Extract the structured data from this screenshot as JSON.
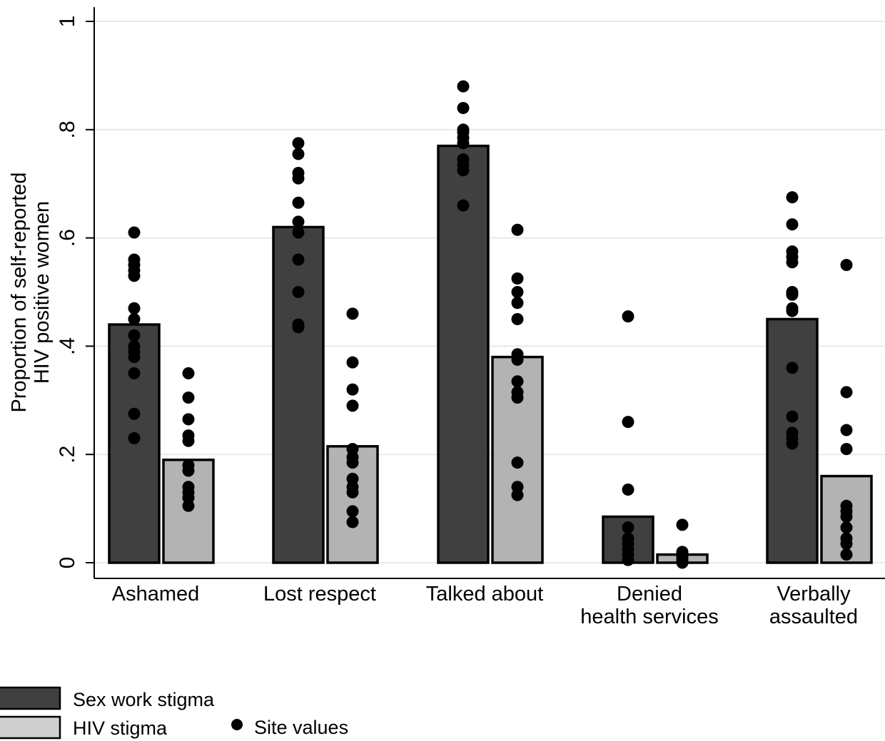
{
  "chart_data": {
    "type": "bar",
    "categories": [
      [
        "Ashamed"
      ],
      [
        "Lost respect"
      ],
      [
        "Talked about"
      ],
      [
        "Denied",
        "health services"
      ],
      [
        "Verbally",
        "assaulted"
      ]
    ],
    "ylabel": [
      "Proportion of self-reported",
      "HIV positive women"
    ],
    "xlabel": "",
    "ylim": [
      0,
      1
    ],
    "yticks": [
      {
        "value": 0,
        "label": "0"
      },
      {
        "value": 0.2,
        "label": ".2"
      },
      {
        "value": 0.4,
        "label": ".4"
      },
      {
        "value": 0.6,
        "label": ".6"
      },
      {
        "value": 0.8,
        "label": ".8"
      },
      {
        "value": 1,
        "label": "1"
      }
    ],
    "grid": true,
    "legend_position": "bottom-left",
    "series": [
      {
        "name": "Sex work stigma",
        "color": "#404040",
        "values": [
          0.44,
          0.62,
          0.77,
          0.085,
          0.45
        ],
        "site_values": [
          [
            0.61,
            0.56,
            0.55,
            0.54,
            0.53,
            0.47,
            0.45,
            0.42,
            0.4,
            0.39,
            0.38,
            0.35,
            0.275,
            0.23
          ],
          [
            0.775,
            0.755,
            0.72,
            0.71,
            0.665,
            0.63,
            0.61,
            0.56,
            0.5,
            0.44,
            0.435
          ],
          [
            0.88,
            0.84,
            0.8,
            0.795,
            0.785,
            0.775,
            0.745,
            0.735,
            0.725,
            0.66
          ],
          [
            0.455,
            0.26,
            0.135,
            0.065,
            0.045,
            0.035,
            0.025,
            0.015,
            0.005
          ],
          [
            0.675,
            0.625,
            0.575,
            0.565,
            0.555,
            0.5,
            0.495,
            0.47,
            0.465,
            0.36,
            0.27,
            0.24,
            0.23,
            0.22
          ]
        ]
      },
      {
        "name": "HIV stigma",
        "color": "#b3b3b3",
        "values": [
          0.19,
          0.215,
          0.38,
          0.015,
          0.16
        ],
        "site_values": [
          [
            0.35,
            0.305,
            0.265,
            0.235,
            0.225,
            0.18,
            0.17,
            0.14,
            0.13,
            0.12,
            0.105
          ],
          [
            0.46,
            0.37,
            0.32,
            0.29,
            0.21,
            0.195,
            0.185,
            0.155,
            0.14,
            0.13,
            0.095,
            0.075
          ],
          [
            0.615,
            0.525,
            0.5,
            0.48,
            0.45,
            0.385,
            0.375,
            0.335,
            0.315,
            0.305,
            0.185,
            0.14,
            0.125
          ],
          [
            0.07,
            0.02,
            0.015,
            0.01,
            0.005,
            0.0
          ],
          [
            0.55,
            0.315,
            0.245,
            0.21,
            0.105,
            0.095,
            0.085,
            0.065,
            0.045,
            0.035,
            0.015
          ]
        ]
      }
    ],
    "legend": {
      "entries": [
        {
          "label": "Sex work stigma",
          "symbol": "box",
          "color": "#404040"
        },
        {
          "label": "HIV stigma",
          "symbol": "box",
          "color": "#b3b3b3"
        },
        {
          "label": "Site values",
          "symbol": "dot",
          "color": "#000000"
        }
      ]
    }
  }
}
